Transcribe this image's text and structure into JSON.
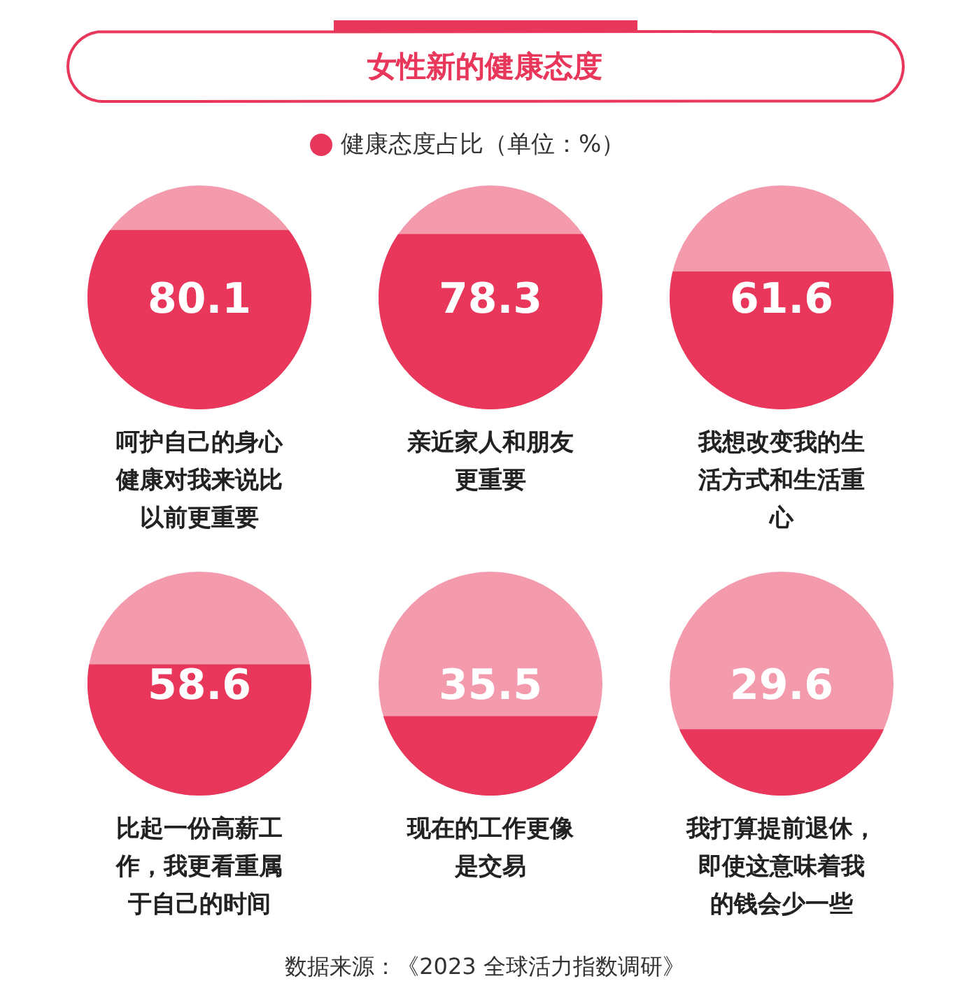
{
  "chart_data": {
    "type": "other",
    "title": "女性新的健康态度",
    "categories": [
      "呵护自己的身心健康对我来说比以前更重要",
      "亲近家人和朋友更重要",
      "我想改变我的生活方式和生活重心",
      "比起一份高薪工作，我更看重属于自己的时间",
      "现在的工作更像是交易",
      "我打算提前退休，即使这意味着我的钱会少一些"
    ],
    "series": [
      {
        "name": "健康态度占比（单位：%）",
        "color": "#e8375a",
        "values": [
          80.1,
          78.3,
          61.6,
          58.6,
          35.5,
          29.6
        ]
      }
    ],
    "data_labels": true,
    "legend": "top",
    "annotations": [
      "数据来源：《2023 全球活力指数调研》"
    ]
  }
}
